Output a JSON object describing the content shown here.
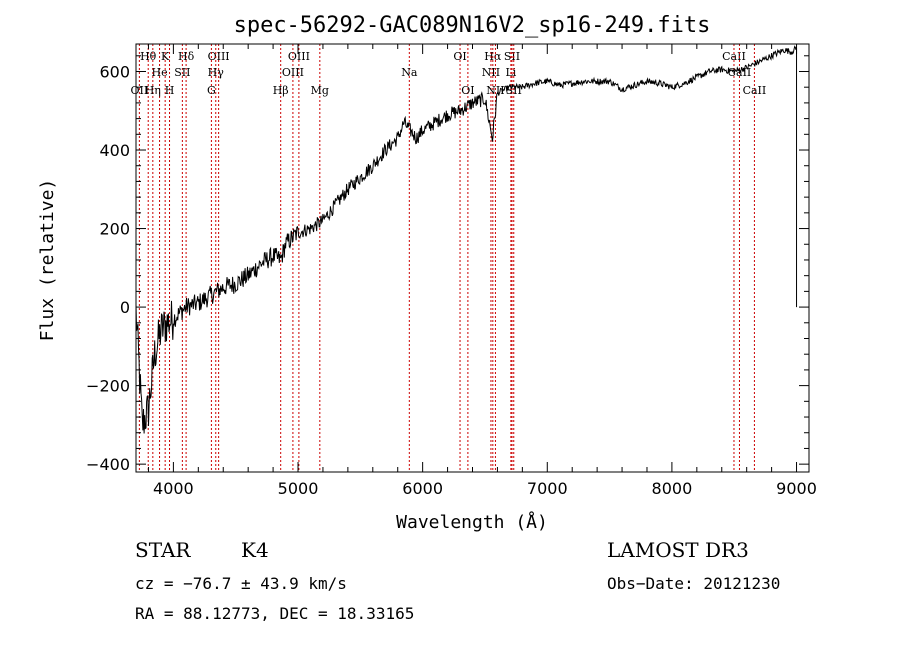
{
  "chart_data": {
    "type": "line",
    "title": "spec-56292-GAC089N16V2_sp16-249.fits",
    "xlabel": "Wavelength (Å)",
    "ylabel": "Flux (relative)",
    "xlim": [
      3700,
      9100
    ],
    "ylim": [
      -420,
      670
    ],
    "xticks": [
      4000,
      5000,
      6000,
      7000,
      8000,
      9000
    ],
    "yticks": [
      -400,
      -200,
      0,
      200,
      400,
      600
    ],
    "series": [
      {
        "name": "spectrum",
        "x": [
          3700,
          3750,
          3800,
          3850,
          3900,
          3950,
          4000,
          4100,
          4200,
          4300,
          4400,
          4500,
          4600,
          4700,
          4800,
          4861,
          4900,
          5000,
          5100,
          5200,
          5300,
          5400,
          5500,
          5600,
          5700,
          5800,
          5850,
          5900,
          5950,
          6000,
          6100,
          6200,
          6300,
          6400,
          6500,
          6560,
          6600,
          6700,
          6800,
          6900,
          7000,
          7100,
          7200,
          7300,
          7400,
          7500,
          7600,
          7700,
          7800,
          7900,
          8000,
          8100,
          8200,
          8300,
          8400,
          8500,
          8600,
          8700,
          8800,
          8900,
          8960,
          9000
        ],
        "y": [
          -10,
          -300,
          -260,
          -120,
          -60,
          -40,
          -30,
          0,
          10,
          30,
          50,
          60,
          80,
          110,
          130,
          120,
          160,
          190,
          200,
          220,
          260,
          300,
          330,
          360,
          400,
          430,
          470,
          450,
          430,
          450,
          470,
          490,
          500,
          520,
          530,
          430,
          545,
          560,
          560,
          570,
          575,
          565,
          570,
          575,
          575,
          575,
          555,
          565,
          575,
          570,
          560,
          570,
          585,
          600,
          605,
          600,
          610,
          625,
          640,
          655,
          650,
          660
        ]
      }
    ],
    "spectral_lines": [
      {
        "label": "Hθ",
        "wavelength": 3798,
        "row": 1
      },
      {
        "label": "OII",
        "wavelength": 3727,
        "row": 3
      },
      {
        "label": "He",
        "wavelength": 3889,
        "row": 2
      },
      {
        "label": "Hη",
        "wavelength": 3835,
        "row": 3
      },
      {
        "label": "K",
        "wavelength": 3934,
        "row": 1
      },
      {
        "label": "H",
        "wavelength": 3969,
        "row": 3
      },
      {
        "label": "SII",
        "wavelength": 4072,
        "row": 2
      },
      {
        "label": "Hδ",
        "wavelength": 4102,
        "row": 1
      },
      {
        "label": "OIII",
        "wavelength": 4363,
        "row": 1
      },
      {
        "label": "Hγ",
        "wavelength": 4340,
        "row": 2
      },
      {
        "label": "G",
        "wavelength": 4305,
        "row": 3
      },
      {
        "label": "Hβ",
        "wavelength": 4861,
        "row": 3
      },
      {
        "label": "OIII",
        "wavelength": 5007,
        "row": 1
      },
      {
        "label": "OIII",
        "wavelength": 4959,
        "row": 2
      },
      {
        "label": "Mg",
        "wavelength": 5175,
        "row": 3
      },
      {
        "label": "Na",
        "wavelength": 5893,
        "row": 2
      },
      {
        "label": "OI",
        "wavelength": 6300,
        "row": 1
      },
      {
        "label": "OI",
        "wavelength": 6363,
        "row": 3
      },
      {
        "label": "Hα",
        "wavelength": 6563,
        "row": 1
      },
      {
        "label": "NII",
        "wavelength": 6548,
        "row": 2
      },
      {
        "label": "NII",
        "wavelength": 6584,
        "row": 3
      },
      {
        "label": "SII",
        "wavelength": 6717,
        "row": 1
      },
      {
        "label": "Li",
        "wavelength": 6708,
        "row": 2
      },
      {
        "label": "SII",
        "wavelength": 6731,
        "row": 3
      },
      {
        "label": "CaII",
        "wavelength": 8498,
        "row": 1
      },
      {
        "label": "CaII",
        "wavelength": 8542,
        "row": 2
      },
      {
        "label": "CaII",
        "wavelength": 8662,
        "row": 3
      }
    ]
  },
  "info": {
    "object_class": "STAR",
    "subclass": "K4",
    "survey": "LAMOST DR3",
    "cz": "cz = −76.7 ± 43.9 km/s",
    "obs_date": "Obs−Date: 20121230",
    "coords": "RA =  88.12773, DEC =  18.33165"
  }
}
